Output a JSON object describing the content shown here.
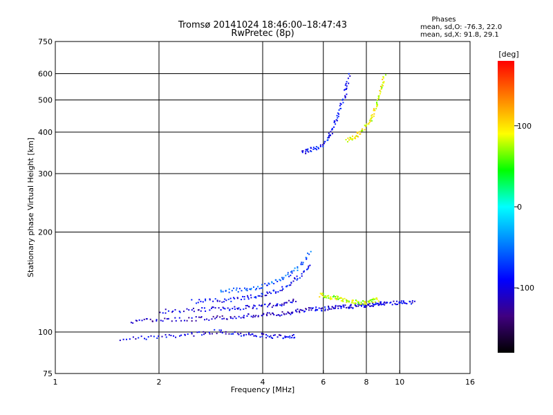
{
  "chart_data": {
    "type": "scatter",
    "title": "Tromsø 20141024 18:46:00–18:47:43",
    "subtitle": "RwPretec (8p)",
    "xlabel": "Frequency [MHz]",
    "ylabel": "Stationary phase Virtual Height [km]",
    "x_scale": "log",
    "y_scale": "log",
    "xlim": [
      1,
      16
    ],
    "ylim": [
      75,
      750
    ],
    "x_ticks": [
      1,
      2,
      4,
      6,
      8,
      10,
      16
    ],
    "y_ticks": [
      75,
      100,
      200,
      300,
      400,
      500,
      600,
      750
    ],
    "x_gridlines": [
      2,
      4,
      6,
      8,
      10
    ],
    "y_gridlines": [
      100,
      200,
      300,
      400,
      500,
      600
    ],
    "grid": true,
    "stats": {
      "heading": "Phases",
      "line1": "mean, sd,O: -76.3, 22.0",
      "line2": "mean, sd,X:  91.8, 29.1"
    },
    "colorbar": {
      "label": "[deg]",
      "ticks": [
        100,
        0,
        -100
      ],
      "range": [
        -180,
        180
      ],
      "colors": [
        "#ff0000",
        "#ff8000",
        "#ffff00",
        "#00ff00",
        "#00ffff",
        "#0080ff",
        "#0000ff",
        "#400080",
        "#000000"
      ]
    },
    "traces": [
      {
        "name": "lower-trace-1",
        "x": [
          1.55,
          2.0,
          2.5,
          3.0,
          3.5,
          4.0,
          4.5,
          5.0
        ],
        "y": [
          96,
          97,
          99,
          101,
          99,
          98,
          97,
          98
        ],
        "phase": -100
      },
      {
        "name": "lower-trace-2",
        "x": [
          1.65,
          2.0,
          2.5,
          3.0,
          3.5,
          4.0,
          4.5,
          5.0,
          5.5
        ],
        "y": [
          108,
          109,
          110,
          111,
          112,
          113,
          114,
          116,
          118
        ],
        "phase": -110
      },
      {
        "name": "lower-trace-3",
        "x": [
          2.0,
          2.5,
          3.0,
          3.5,
          4.0,
          4.5,
          5.0
        ],
        "y": [
          116,
          117,
          118,
          119,
          120,
          122,
          125
        ],
        "phase": -100
      },
      {
        "name": "lower-trace-4",
        "x": [
          2.5,
          3.0,
          3.5,
          4.0,
          4.5,
          5.0,
          5.5
        ],
        "y": [
          124,
          125,
          127,
          130,
          135,
          145,
          160
        ],
        "phase": -90
      },
      {
        "name": "lower-trace-5",
        "x": [
          3.0,
          3.5,
          4.0,
          4.5,
          5.0,
          5.5
        ],
        "y": [
          133,
          135,
          138,
          145,
          155,
          175
        ],
        "phase": -60
      },
      {
        "name": "mid-trace",
        "x": [
          5.5,
          6.0,
          6.5,
          7.0,
          7.5,
          8.0,
          8.5,
          9.0,
          10.0,
          11.0
        ],
        "y": [
          118,
          118,
          119,
          120,
          120,
          121,
          122,
          123,
          123,
          123
        ],
        "phase": -100
      },
      {
        "name": "mid-trace-x",
        "x": [
          5.8,
          6.2,
          6.6,
          7.0,
          7.4,
          7.8,
          8.2,
          8.6
        ],
        "y": [
          130,
          128,
          127,
          125,
          124,
          123,
          124,
          126
        ],
        "phase": 80
      },
      {
        "name": "upper-trace-o",
        "x": [
          5.2,
          5.5,
          6.0,
          6.3,
          6.6,
          6.9,
          7.1
        ],
        "y": [
          350,
          355,
          370,
          400,
          450,
          520,
          600
        ],
        "phase": -90
      },
      {
        "name": "upper-trace-x",
        "x": [
          7.0,
          7.4,
          7.8,
          8.2,
          8.5,
          8.8,
          9.0
        ],
        "y": [
          380,
          390,
          410,
          440,
          480,
          540,
          600
        ],
        "phase": 90
      }
    ]
  }
}
